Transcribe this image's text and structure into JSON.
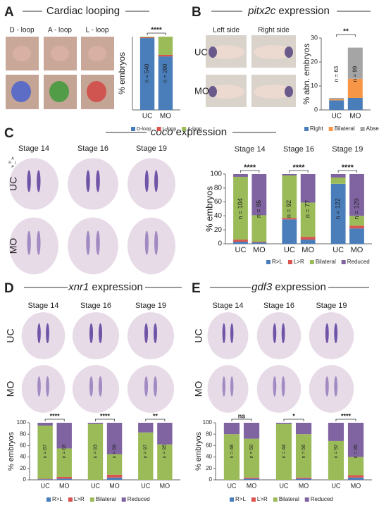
{
  "panels": {
    "A": {
      "letter": "A",
      "title": "Cardiac looping",
      "image_labels": [
        "D - loop",
        "A - loop",
        "L - loop"
      ]
    },
    "B": {
      "letter": "B",
      "title_gene": "pitx2c",
      "title_rest": "expression",
      "columns": [
        "Left side",
        "Right side"
      ],
      "rows": [
        "UC",
        "MO"
      ]
    },
    "C": {
      "letter": "C",
      "title_gene": "coco",
      "title_rest": "expression",
      "columns": [
        "Stage 14",
        "Stage 16",
        "Stage 19"
      ],
      "rows": [
        "UC",
        "MO"
      ],
      "orientation": [
        "A",
        "R",
        "L",
        "P"
      ]
    },
    "D": {
      "letter": "D",
      "title_gene": "xnr1",
      "title_rest": "expression",
      "columns": [
        "Stage 14",
        "Stage 16",
        "Stage 19"
      ],
      "rows": [
        "UC",
        "MO"
      ]
    },
    "E": {
      "letter": "E",
      "title_gene": "gdf3",
      "title_rest": "expression",
      "columns": [
        "Stage 14",
        "Stage 16",
        "Stage 19"
      ],
      "rows": [
        "UC",
        "MO"
      ]
    }
  },
  "chart_data": [
    {
      "type": "stacked_bar",
      "ylabel": "% embryos",
      "categories": [
        "UC",
        "MO"
      ],
      "ylim": [
        0,
        100
      ],
      "series": [
        {
          "name": "D-loop",
          "color": "#4a7ebb",
          "values": [
            98,
            73
          ]
        },
        {
          "name": "L-loop",
          "color": "#d9534f",
          "values": [
            1,
            2
          ]
        },
        {
          "name": "A-loop",
          "color": "#9bbb59",
          "values": [
            1,
            25
          ]
        }
      ],
      "n_labels": [
        "n = 540",
        "n = 290"
      ],
      "significance": [
        "****"
      ]
    },
    {
      "type": "stacked_bar",
      "ylabel": "% abn. embryos",
      "categories": [
        "UC",
        "MO"
      ],
      "ylim": [
        0,
        30
      ],
      "yticks": [
        0,
        10,
        20,
        30
      ],
      "series": [
        {
          "name": "Right",
          "color": "#4a7ebb",
          "values": [
            4,
            5
          ]
        },
        {
          "name": "Bilateral",
          "color": "#f79646",
          "values": [
            0.5,
            8
          ]
        },
        {
          "name": "Absent",
          "color": "#a5a5a5",
          "values": [
            0.5,
            13
          ]
        }
      ],
      "n_labels": [
        "n = 63",
        "n = 99"
      ],
      "significance": [
        "**"
      ]
    },
    {
      "type": "stacked_bar",
      "ylabel": "% embryos",
      "groups": [
        "Stage 14",
        "Stage 16",
        "Stage 19"
      ],
      "categories": [
        "UC",
        "MO",
        "UC",
        "MO",
        "UC",
        "MO"
      ],
      "ylim": [
        0,
        100
      ],
      "yticks": [
        0,
        20,
        40,
        60,
        80,
        100
      ],
      "series": [
        {
          "name": "R>L",
          "color": "#4a7ebb",
          "values": [
            3,
            2,
            35,
            6,
            86,
            22
          ]
        },
        {
          "name": "L>R",
          "color": "#d9534f",
          "values": [
            3,
            1,
            2,
            4,
            0,
            4
          ]
        },
        {
          "name": "Bilateral",
          "color": "#9bbb59",
          "values": [
            90,
            38,
            61,
            49,
            9,
            14
          ]
        },
        {
          "name": "Reduced",
          "color": "#8064a2",
          "values": [
            4,
            59,
            2,
            41,
            5,
            60
          ]
        }
      ],
      "n_labels": [
        "n = 104",
        "n = 86",
        "n = 92",
        "n = 77",
        "n = 122",
        "n = 129"
      ],
      "significance": [
        "****",
        "****",
        "****"
      ]
    },
    {
      "type": "stacked_bar",
      "ylabel": "% embryos",
      "categories": [
        "UC",
        "MO",
        "UC",
        "MO",
        "UC",
        "MO"
      ],
      "ylim": [
        0,
        100
      ],
      "yticks": [
        0,
        20,
        40,
        60,
        80,
        100
      ],
      "series": [
        {
          "name": "R>L",
          "color": "#4a7ebb",
          "values": [
            1,
            2,
            0,
            4,
            0,
            0
          ]
        },
        {
          "name": "L>R",
          "color": "#d9534f",
          "values": [
            1,
            3,
            0,
            5,
            0,
            0
          ]
        },
        {
          "name": "Bilateral",
          "color": "#9bbb59",
          "values": [
            93,
            50,
            98,
            36,
            83,
            62
          ]
        },
        {
          "name": "Reduced",
          "color": "#8064a2",
          "values": [
            5,
            45,
            2,
            55,
            17,
            38
          ]
        }
      ],
      "n_labels": [
        "n = 67",
        "n = 63",
        "n = 93",
        "n = 89",
        "n = 97",
        "n = 95"
      ],
      "significance": [
        "****",
        "****",
        "**"
      ]
    },
    {
      "type": "stacked_bar",
      "ylabel": "% embryos",
      "categories": [
        "UC",
        "MO",
        "UC",
        "MO",
        "UC",
        "MO"
      ],
      "ylim": [
        0,
        100
      ],
      "yticks": [
        0,
        20,
        40,
        60,
        80,
        100
      ],
      "series": [
        {
          "name": "R>L",
          "color": "#4a7ebb",
          "values": [
            0,
            2,
            0,
            2,
            0,
            4
          ]
        },
        {
          "name": "L>R",
          "color": "#d9534f",
          "values": [
            0,
            2,
            0,
            2,
            0,
            4
          ]
        },
        {
          "name": "Bilateral",
          "color": "#9bbb59",
          "values": [
            80,
            68,
            98,
            76,
            68,
            32
          ]
        },
        {
          "name": "Reduced",
          "color": "#8064a2",
          "values": [
            20,
            28,
            2,
            20,
            32,
            60
          ]
        }
      ],
      "n_labels": [
        "n = 48",
        "n = 50",
        "n = 44",
        "n = 56",
        "n = 92",
        "n = 85"
      ],
      "significance": [
        "ns",
        "*",
        "****"
      ]
    }
  ]
}
